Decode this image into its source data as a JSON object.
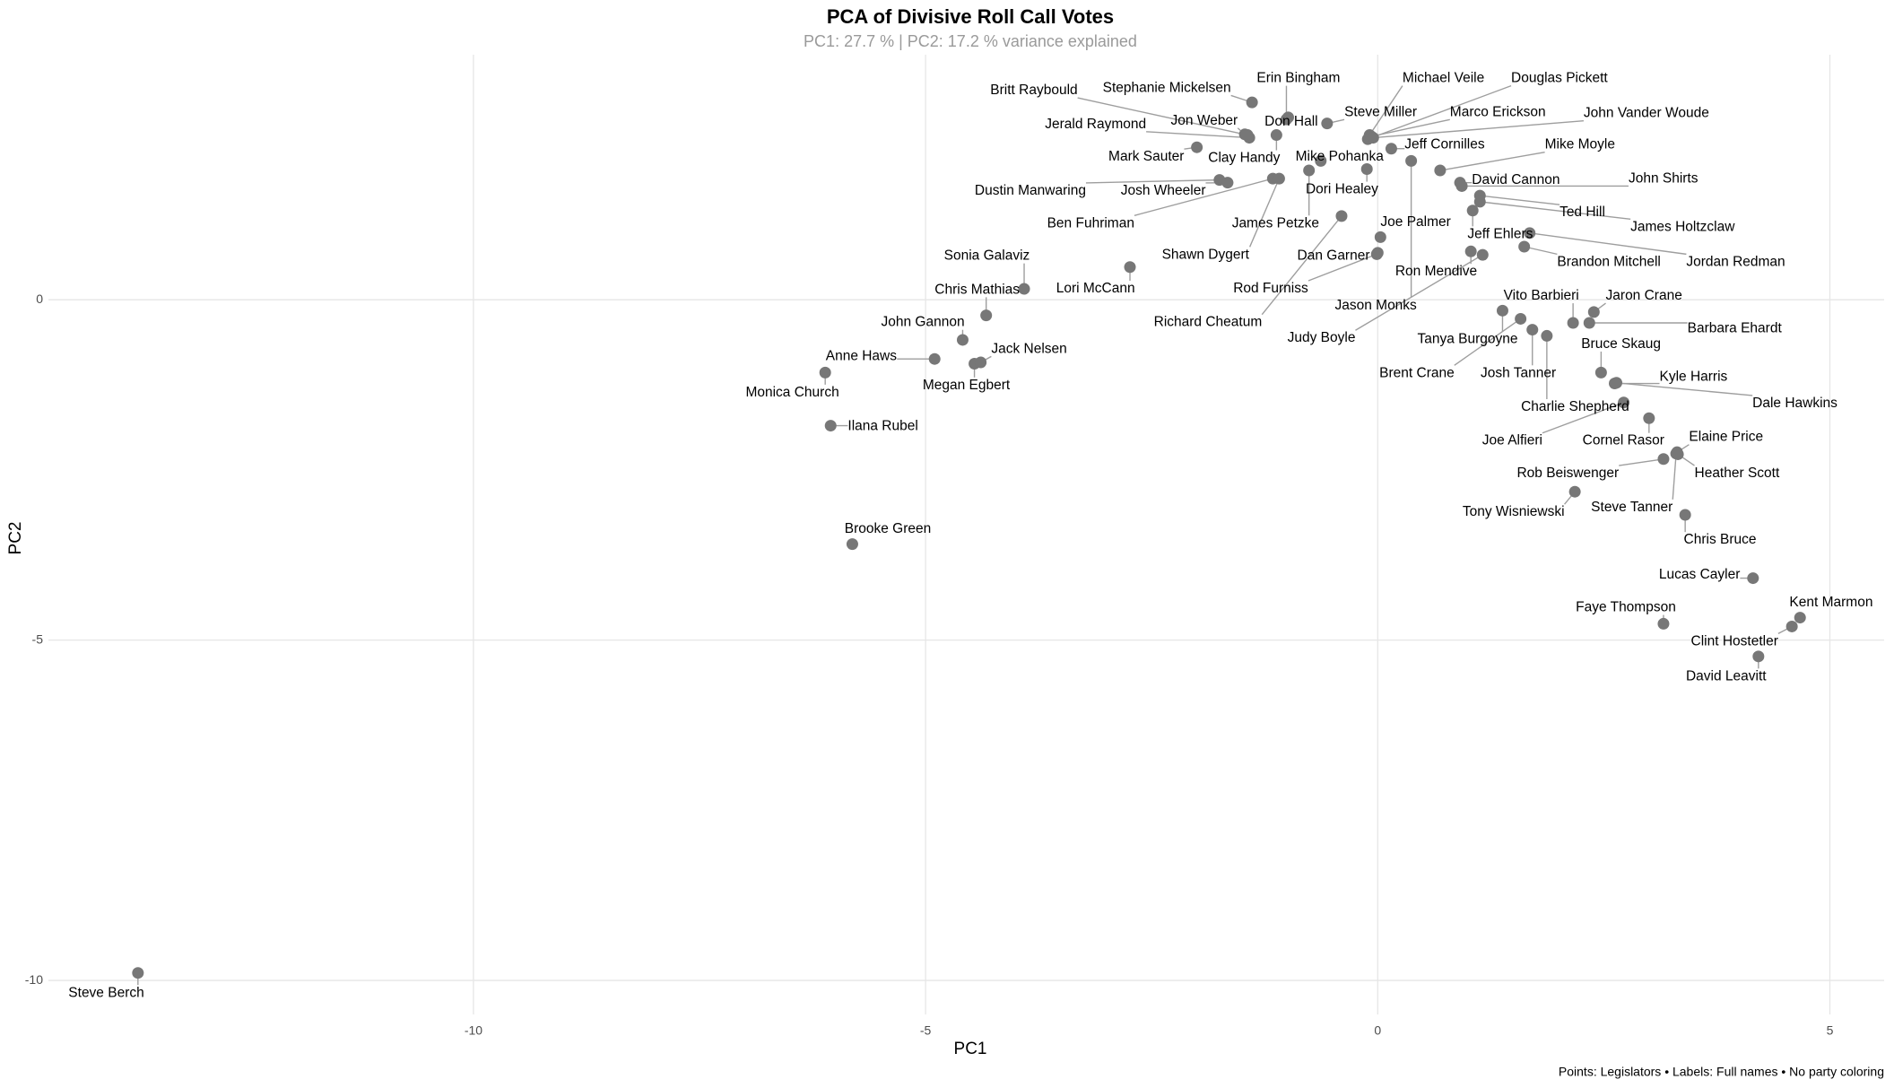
{
  "chart_data": {
    "type": "scatter",
    "title": "PCA of Divisive Roll Call Votes",
    "subtitle": "PC1: 27.7 % | PC2: 17.2 % variance explained",
    "x_label": "PC1",
    "y_label": "PC2",
    "caption": "Points: Legislators • Labels: Full names • No party coloring",
    "color": "#777777",
    "grid": true,
    "xlim": [
      -14.7,
      5.6
    ],
    "ylim": [
      -10.5,
      3.6
    ],
    "xticks": [
      -10,
      -5,
      0,
      5
    ],
    "yticks": [
      0,
      -5,
      -10
    ],
    "labels": [
      "Steve Berch",
      "Brooke Green",
      "Ilana Rubel",
      "Monica Church",
      "Anne Haws",
      "Megan Egbert",
      "Jack Nelsen",
      "John Gannon",
      "Chris Mathias",
      "Sonia Galaviz",
      "Lori McCann",
      "Mark Sauter",
      "Dustin Manwaring",
      "Josh Wheeler",
      "Ben Fuhriman",
      "Shawn Dygert",
      "Britt Raybould",
      "Jerald Raymond",
      "Stephanie Mickelsen",
      "Jon Weber",
      "Erin Bingham",
      "Don Hall",
      "Clay Handy",
      "Mike Pohanka",
      "James Petzke",
      "Dori Healey",
      "Steve Miller",
      "Michael Veile",
      "Douglas Pickett",
      "Marco Erickson",
      "John Vander Woude",
      "Jeff Cornilles",
      "Rod Furniss",
      "Richard Cheatum",
      "Joe Palmer",
      "Dan Garner",
      "Jason Monks",
      "Mike Moyle",
      "David Cannon",
      "John Shirts",
      "Ted Hill",
      "James Holtzclaw",
      "Jeff Ehlers",
      "Jordan Redman",
      "Brandon Mitchell",
      "Ron Mendive",
      "Judy Boyle",
      "Vito Barbieri",
      "Tanya Burgoyne",
      "Brent Crane",
      "Josh Tanner",
      "Charlie Shepherd",
      "Jaron Crane",
      "Barbara Ehardt",
      "Bruce Skaug",
      "Kyle Harris",
      "Dale Hawkins",
      "Joe Alfieri",
      "Cornel Rasor",
      "Elaine Price",
      "Rob Beiswenger",
      "Heather Scott",
      "Tony Wisniewski",
      "Steve Tanner",
      "Chris Bruce",
      "Lucas Cayler",
      "Faye Thompson",
      "Kent Marmon",
      "Clint Hostetler",
      "David Leavitt"
    ],
    "x": [
      -13.71,
      -5.81,
      -6.05,
      -6.11,
      -4.9,
      -4.46,
      -4.39,
      -4.59,
      -4.33,
      -3.91,
      -2.74,
      -2.0,
      -1.75,
      -1.66,
      -1.16,
      -1.09,
      -1.44,
      -1.42,
      -1.39,
      -1.47,
      -1.01,
      -0.99,
      -1.12,
      -0.63,
      -0.76,
      -0.12,
      -0.56,
      -0.09,
      -0.11,
      -0.07,
      -0.05,
      0.15,
      -0.01,
      -0.4,
      0.03,
      0.0,
      0.37,
      0.69,
      0.91,
      0.93,
      1.13,
      1.13,
      1.05,
      1.68,
      1.62,
      1.03,
      1.16,
      2.16,
      1.38,
      1.58,
      1.71,
      1.87,
      2.39,
      2.34,
      2.47,
      2.62,
      2.64,
      2.72,
      3.0,
      3.31,
      3.16,
      3.32,
      2.18,
      3.3,
      3.4,
      4.15,
      3.16,
      4.67,
      4.58,
      4.21
    ],
    "values": [
      -9.89,
      -3.59,
      -1.85,
      -1.07,
      -0.87,
      -0.94,
      -0.92,
      -0.59,
      -0.23,
      0.16,
      0.48,
      2.24,
      1.76,
      1.72,
      1.78,
      1.78,
      2.42,
      2.38,
      2.9,
      2.43,
      2.65,
      2.68,
      2.42,
      2.04,
      1.9,
      1.92,
      2.59,
      2.42,
      2.36,
      2.4,
      2.38,
      2.22,
      0.67,
      1.23,
      0.92,
      0.69,
      2.04,
      1.9,
      1.72,
      1.67,
      1.53,
      1.44,
      1.31,
      0.98,
      0.78,
      0.71,
      0.66,
      -0.34,
      -0.16,
      -0.28,
      -0.44,
      -0.53,
      -0.18,
      -0.34,
      -1.07,
      -1.23,
      -1.22,
      -1.51,
      -1.74,
      -2.24,
      -2.34,
      -2.27,
      -2.82,
      -2.26,
      -3.16,
      -4.09,
      -4.76,
      -4.67,
      -4.8,
      -5.24
    ]
  }
}
